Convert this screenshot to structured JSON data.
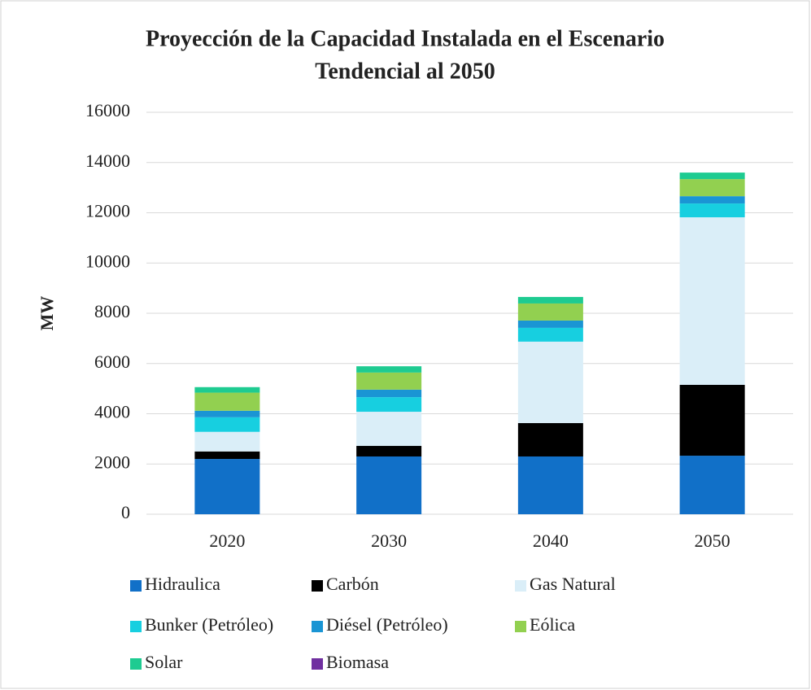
{
  "chart_data": {
    "type": "stacked_bar",
    "title": [
      "Proyección de la Capacidad Instalada en el Escenario",
      "Tendencial al 2050"
    ],
    "y_label": "MW",
    "categories": [
      "2020",
      "2030",
      "2040",
      "2050"
    ],
    "series": [
      {
        "name": "Hidraulica",
        "color": "#1170c8",
        "values": [
          2200,
          2300,
          2300,
          2330
        ]
      },
      {
        "name": "Carbón",
        "color": "#000000",
        "values": [
          300,
          420,
          1330,
          2820
        ]
      },
      {
        "name": "Gas Natural",
        "color": "#daeef8",
        "values": [
          780,
          1360,
          3240,
          6670
        ]
      },
      {
        "name": "Bunker (Petróleo)",
        "color": "#17cfe0",
        "values": [
          580,
          580,
          550,
          550
        ]
      },
      {
        "name": "Diésel (Petróleo)",
        "color": "#1a95d4",
        "values": [
          260,
          300,
          290,
          290
        ]
      },
      {
        "name": "Eólica",
        "color": "#92d050",
        "values": [
          720,
          680,
          680,
          680
        ]
      },
      {
        "name": "Solar",
        "color": "#1ecb91",
        "values": [
          220,
          250,
          260,
          260
        ]
      },
      {
        "name": "Biomasa",
        "color": "#7030a0",
        "values": [
          0,
          0,
          0,
          0
        ]
      }
    ],
    "ylim": [
      0,
      16000
    ],
    "yticks": [
      0,
      2000,
      4000,
      6000,
      8000,
      10000,
      12000,
      14000,
      16000
    ],
    "grid": true,
    "legend": "bottom"
  }
}
